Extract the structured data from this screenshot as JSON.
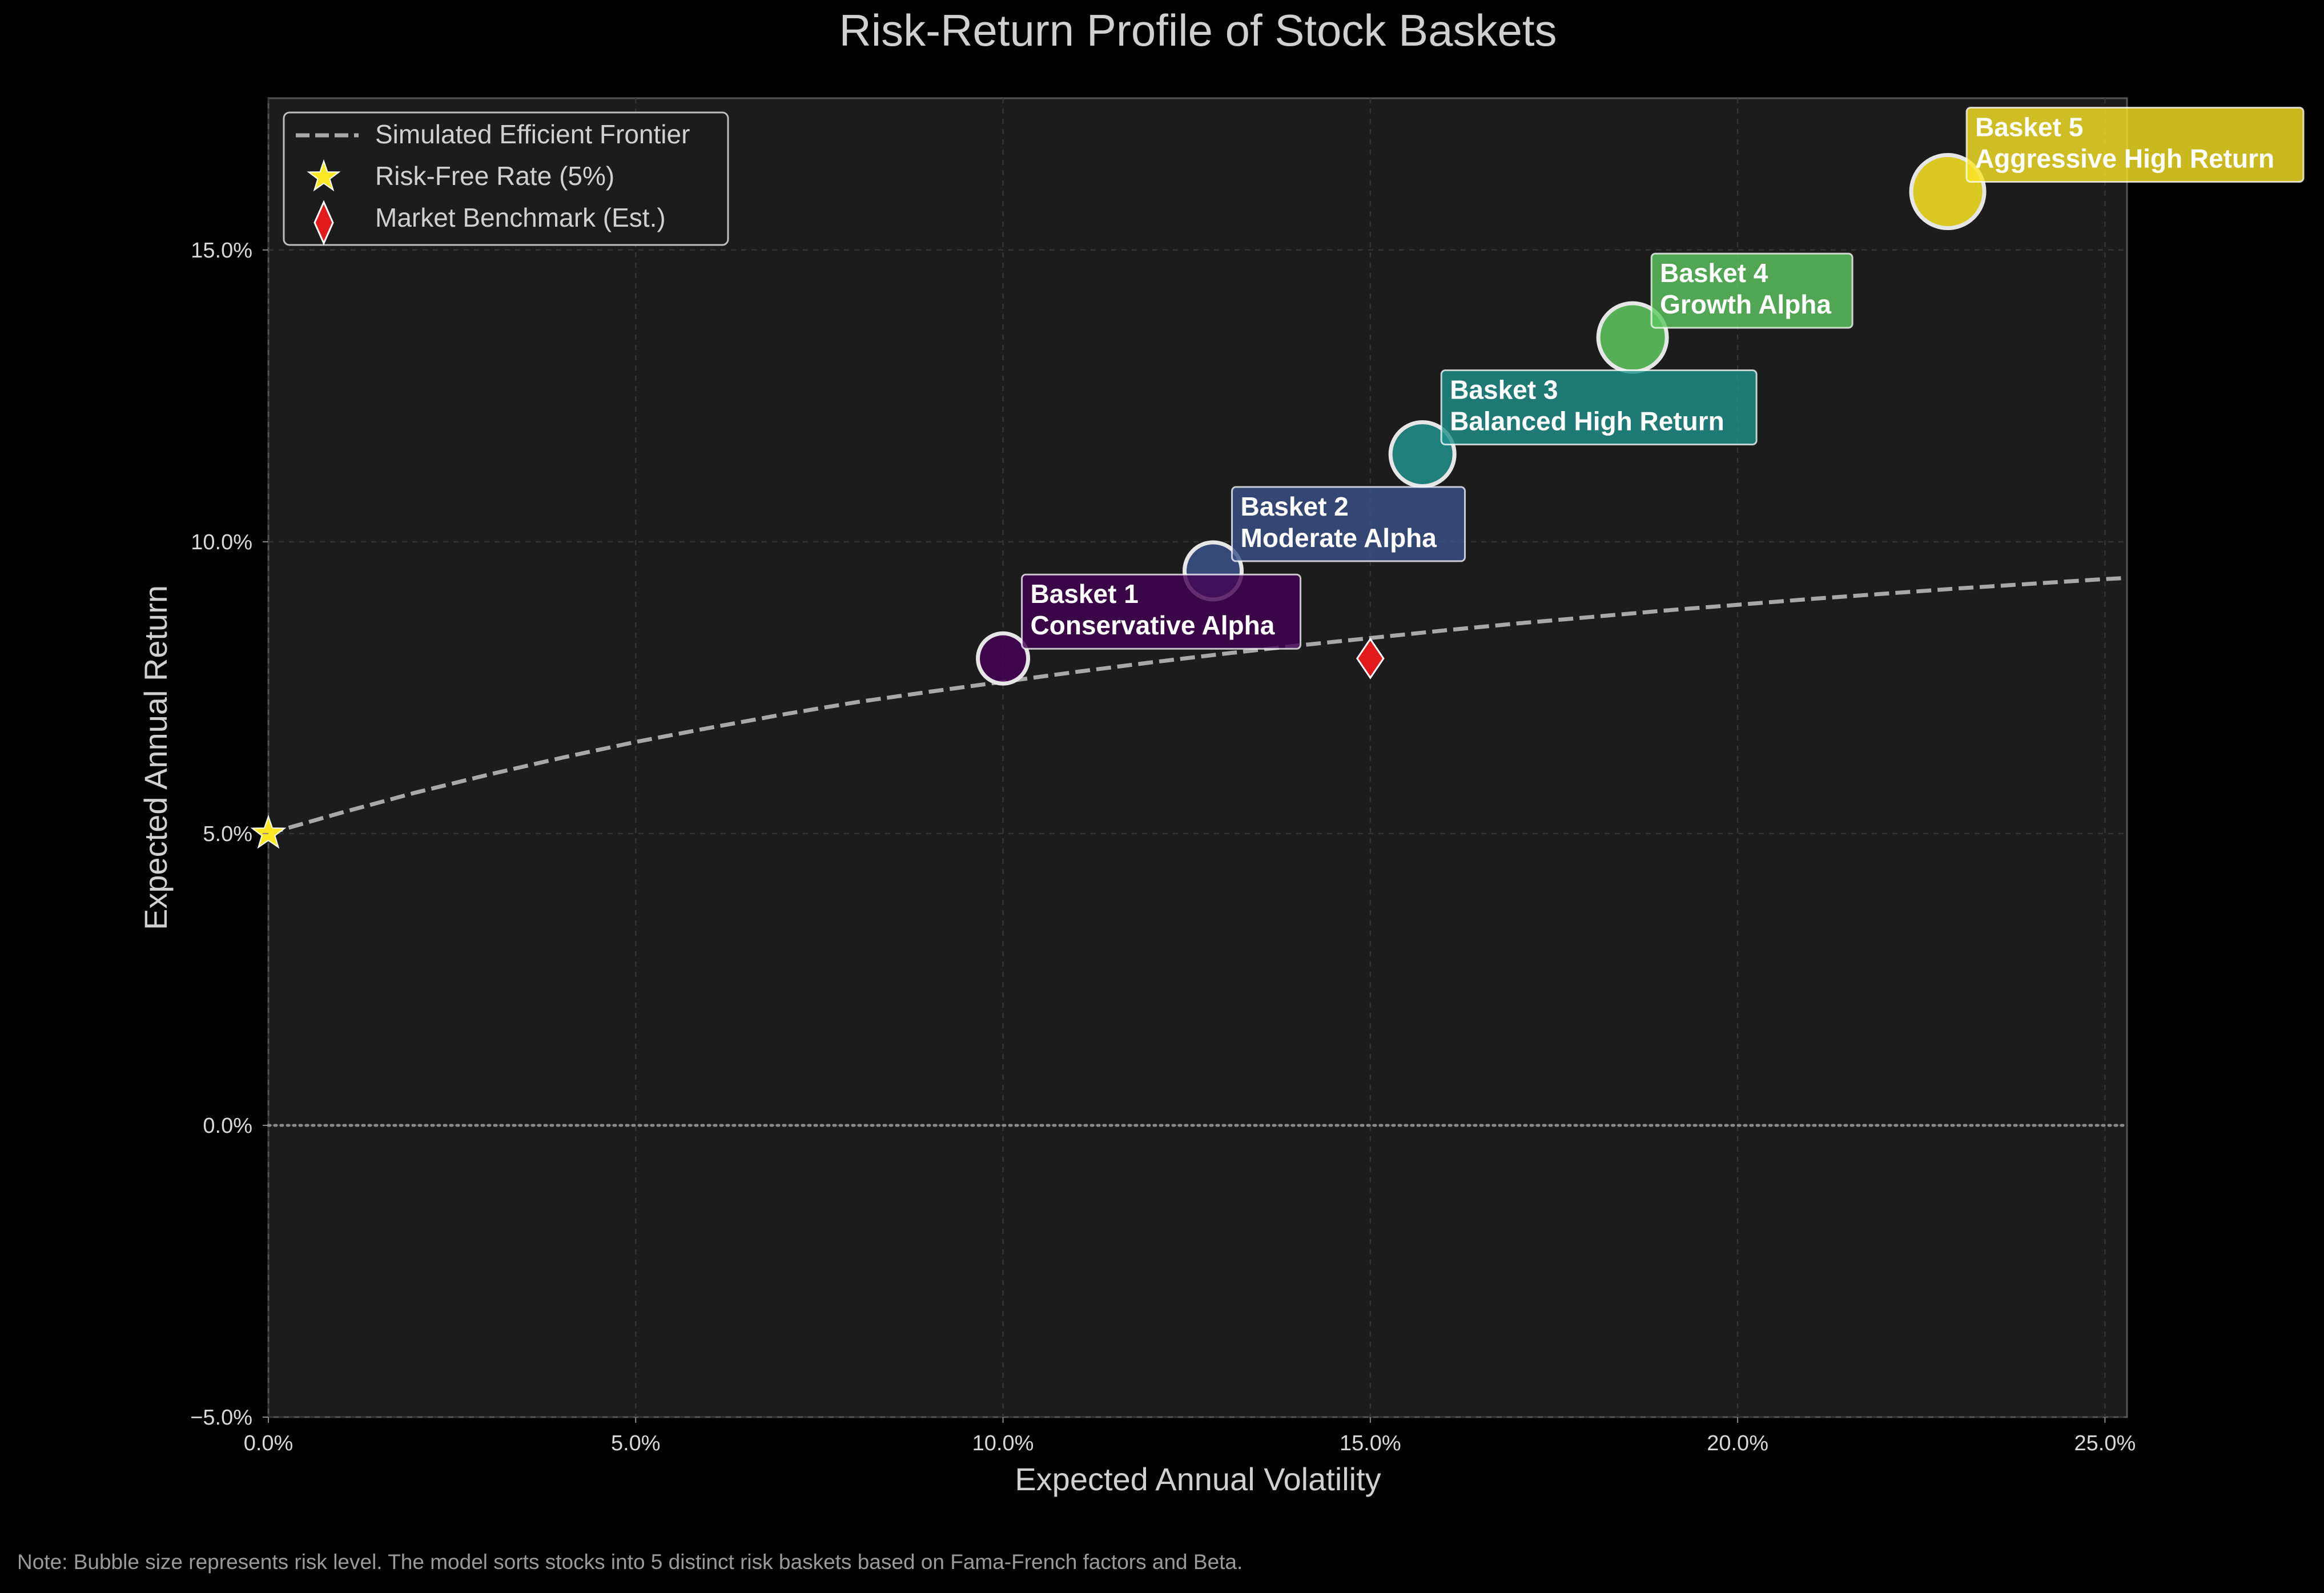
{
  "chart_data": {
    "type": "scatter",
    "title": "Risk-Return Profile of Stock Baskets",
    "xlabel": "Expected Annual Volatility",
    "ylabel": "Expected Annual Return",
    "xlim": [
      0.0,
      0.253
    ],
    "ylim": [
      -0.05,
      0.176
    ],
    "x_ticks": [
      0.0,
      0.05,
      0.1,
      0.15,
      0.2,
      0.25
    ],
    "x_tick_labels": [
      "0.0%",
      "5.0%",
      "10.0%",
      "15.0%",
      "20.0%",
      "25.0%"
    ],
    "y_ticks": [
      -0.05,
      0.0,
      0.05,
      0.1,
      0.15
    ],
    "y_tick_labels": [
      "−5.0%",
      "0.0%",
      "5.0%",
      "10.0%",
      "15.0%"
    ],
    "grid": true,
    "zero_line": true,
    "legend_position": "top-left",
    "legend": [
      {
        "label": "Simulated Efficient Frontier",
        "marker": "dashed-line",
        "color": "#aaaaaa"
      },
      {
        "label": "Risk-Free Rate (5%)",
        "marker": "star",
        "color": "#fde725"
      },
      {
        "label": "Market Benchmark (Est.)",
        "marker": "diamond",
        "color": "#e31a1c"
      }
    ],
    "baskets": [
      {
        "title": "Basket 1",
        "subtitle": "Conservative Alpha",
        "x": 0.1,
        "y": 0.08,
        "size": 1,
        "color": "#440154"
      },
      {
        "title": "Basket 2",
        "subtitle": "Moderate Alpha",
        "x": 0.1286,
        "y": 0.095,
        "size": 2,
        "color": "#3b528b"
      },
      {
        "title": "Basket 3",
        "subtitle": "Balanced High Return",
        "x": 0.1571,
        "y": 0.115,
        "size": 3,
        "color": "#21918c"
      },
      {
        "title": "Basket 4",
        "subtitle": "Growth Alpha",
        "x": 0.1857,
        "y": 0.135,
        "size": 4,
        "color": "#5ec962"
      },
      {
        "title": "Basket 5",
        "subtitle": "Aggressive High Return",
        "x": 0.2286,
        "y": 0.16,
        "size": 5,
        "color": "#fde725"
      }
    ],
    "risk_free": {
      "x": 0.0,
      "y": 0.05
    },
    "market_benchmark": {
      "x": 0.15,
      "y": 0.08
    },
    "frontier": {
      "x": [
        0.0,
        0.01,
        0.02,
        0.03,
        0.04,
        0.05,
        0.06,
        0.07,
        0.08,
        0.09,
        0.1,
        0.11,
        0.12,
        0.13,
        0.14,
        0.15,
        0.16,
        0.17,
        0.18,
        0.19,
        0.2,
        0.21,
        0.22,
        0.23,
        0.24,
        0.25,
        0.253
      ],
      "y": [
        0.05,
        0.0536,
        0.057,
        0.0601,
        0.063,
        0.0657,
        0.0681,
        0.0704,
        0.0725,
        0.0743,
        0.076,
        0.0777,
        0.0793,
        0.0808,
        0.0822,
        0.0835,
        0.0848,
        0.086,
        0.0871,
        0.0882,
        0.0892,
        0.0902,
        0.0911,
        0.092,
        0.0928,
        0.0936,
        0.0938
      ]
    }
  },
  "note": "Note: Bubble size represents risk level. The model sorts stocks into 5 distinct risk baskets based on Fama-French factors and Beta."
}
